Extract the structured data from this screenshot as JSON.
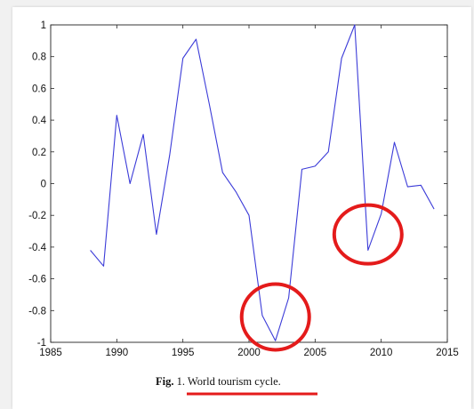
{
  "chart_data": {
    "type": "line",
    "xlim": [
      1985,
      2015
    ],
    "ylim": [
      -1,
      1
    ],
    "x_ticks": [
      1985,
      1990,
      1995,
      2000,
      2005,
      2010,
      2015
    ],
    "y_ticks": [
      -1,
      -0.8,
      -0.6,
      -0.4,
      -0.2,
      0,
      0.2,
      0.4,
      0.6,
      0.8,
      1
    ],
    "y_tick_labels": [
      "-1",
      "-0.8",
      "-0.6",
      "-0.4",
      "-0.2",
      "0",
      "0.2",
      "0.4",
      "0.6",
      "0.8",
      "1"
    ],
    "x_tick_labels": [
      "1985",
      "1990",
      "1995",
      "2000",
      "2005",
      "2010",
      "2015"
    ],
    "grid": false,
    "series": [
      {
        "color": "#3b3bd8",
        "x": [
          1988,
          1989,
          1990,
          1991,
          1992,
          1993,
          1994,
          1995,
          1996,
          1997,
          1998,
          1999,
          2000,
          2001,
          2002,
          2003,
          2004,
          2005,
          2006,
          2007,
          2008,
          2009,
          2010,
          2011,
          2012,
          2013,
          2014
        ],
        "y": [
          -0.42,
          -0.52,
          0.43,
          0.0,
          0.31,
          -0.32,
          0.18,
          0.79,
          0.91,
          0.5,
          0.07,
          -0.05,
          -0.2,
          -0.83,
          -0.99,
          -0.72,
          0.09,
          0.11,
          0.2,
          0.79,
          1.0,
          -0.42,
          -0.19,
          0.26,
          -0.02,
          -0.01,
          -0.16
        ]
      }
    ],
    "annotations": [
      {
        "type": "circle",
        "color": "#e41b1b",
        "center": [
          2002,
          -0.84
        ]
      },
      {
        "type": "circle",
        "color": "#e41b1b",
        "center": [
          2009,
          -0.32
        ]
      }
    ]
  },
  "caption": {
    "prefix": "Fig.",
    "number": "1.",
    "text": "World tourism cycle.",
    "underline_color": "#e41b1b"
  }
}
